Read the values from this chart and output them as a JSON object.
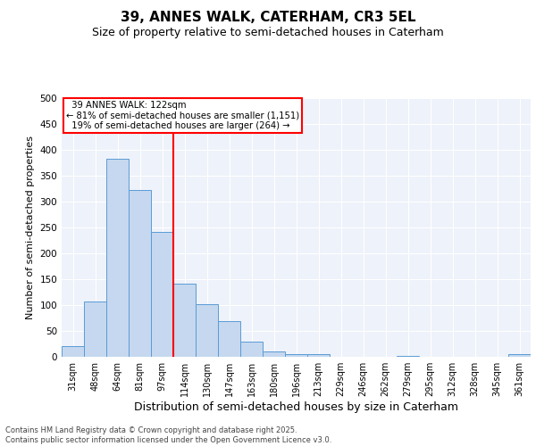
{
  "title": "39, ANNES WALK, CATERHAM, CR3 5EL",
  "subtitle": "Size of property relative to semi-detached houses in Caterham",
  "xlabel": "Distribution of semi-detached houses by size in Caterham",
  "ylabel": "Number of semi-detached properties",
  "categories": [
    "31sqm",
    "48sqm",
    "64sqm",
    "81sqm",
    "97sqm",
    "114sqm",
    "130sqm",
    "147sqm",
    "163sqm",
    "180sqm",
    "196sqm",
    "213sqm",
    "229sqm",
    "246sqm",
    "262sqm",
    "279sqm",
    "295sqm",
    "312sqm",
    "328sqm",
    "345sqm",
    "361sqm"
  ],
  "values": [
    20,
    107,
    383,
    323,
    241,
    141,
    101,
    69,
    30,
    10,
    6,
    6,
    0,
    0,
    0,
    2,
    0,
    0,
    0,
    0,
    5
  ],
  "bar_color": "#c5d8ef",
  "bar_edge_color": "#5b9bd5",
  "vertical_line_index": 5,
  "vertical_line_label": "39 ANNES WALK: 122sqm",
  "pct_smaller": 81,
  "n_smaller": 1151,
  "pct_larger": 19,
  "n_larger": 264,
  "ylim": [
    0,
    500
  ],
  "yticks": [
    0,
    50,
    100,
    150,
    200,
    250,
    300,
    350,
    400,
    450,
    500
  ],
  "footer": "Contains HM Land Registry data © Crown copyright and database right 2025.\nContains public sector information licensed under the Open Government Licence v3.0.",
  "bg_color": "#eef2fa",
  "title_fontsize": 11,
  "subtitle_fontsize": 9,
  "xlabel_fontsize": 9,
  "ylabel_fontsize": 8
}
